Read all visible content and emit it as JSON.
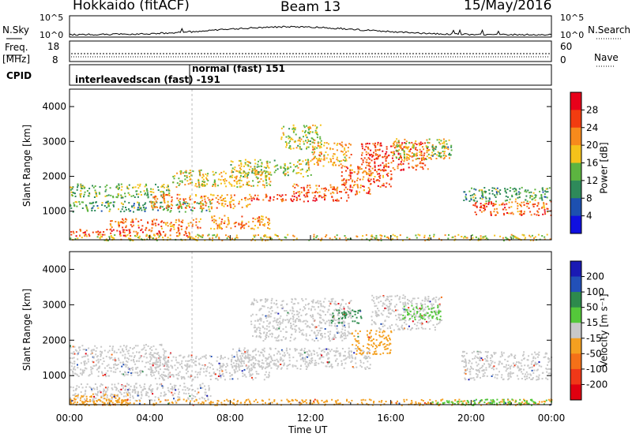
{
  "header": {
    "station": "Hokkaido (fitACF)",
    "beam": "Beam 13",
    "date": "15/May/2016"
  },
  "top_panels": {
    "nsky_label": "N.Sky",
    "nsearch_label": "N.Search",
    "freq_label_1": "Freq.",
    "freq_label_2": "[MHz]",
    "nave_label": "Nave",
    "cpid_label": "CPID",
    "nsky_ticks": [
      "10^5",
      "10^0"
    ],
    "nsearch_ticks": [
      "10^5",
      "10^0"
    ],
    "freq_ticks": [
      "18",
      "8"
    ],
    "nave_ticks": [
      "60",
      "0"
    ],
    "cpid_entries": [
      {
        "text": "interleavedscan (fast) -191"
      },
      {
        "text": "normal (fast) 151"
      }
    ]
  },
  "x_axis": {
    "label": "Time UT",
    "ticks": [
      "00:00",
      "04:00",
      "08:00",
      "12:00",
      "16:00",
      "20:00",
      "00:00"
    ]
  },
  "power_colorbar": {
    "label": "Power [dB]",
    "ticks": [
      "28",
      "24",
      "20",
      "16",
      "12",
      "8",
      "4"
    ],
    "colors": [
      "#e8001a",
      "#f23c10",
      "#f78a1c",
      "#f5c21a",
      "#5cb440",
      "#2e8a5a",
      "#1d50b0",
      "#1010e0"
    ]
  },
  "velocity_colorbar": {
    "label": "Velocity [m s⁻¹]",
    "ticks": [
      "200",
      "100",
      "50",
      "15",
      "-15",
      "-50",
      "-100",
      "-200"
    ],
    "colors": [
      "#1a1ab4",
      "#2250b8",
      "#2d8a4c",
      "#54c83a",
      "#c8c8c8",
      "#f4a020",
      "#f47018",
      "#f03818",
      "#e00010"
    ]
  },
  "chart_data": [
    {
      "type": "heatmap",
      "title": "",
      "xlabel": "Time UT",
      "ylabel": "Slant Range [km]",
      "xlim": [
        0,
        24
      ],
      "ylim": [
        180,
        4500
      ],
      "y_ticks": [
        1000,
        2000,
        3000,
        4000
      ],
      "colorbar_label": "Power [dB]",
      "regions": [
        {
          "t": [
            0.0,
            6.0
          ],
          "r": [
            300,
            500
          ],
          "v": 26
        },
        {
          "t": [
            2.0,
            6.5
          ],
          "r": [
            500,
            800
          ],
          "v": 24
        },
        {
          "t": [
            0.0,
            5.0
          ],
          "r": [
            1400,
            1800
          ],
          "v": 14
        },
        {
          "t": [
            0.0,
            7.0
          ],
          "r": [
            1000,
            1300
          ],
          "v": 12
        },
        {
          "t": [
            4.0,
            9.0
          ],
          "r": [
            1100,
            1500
          ],
          "v": 22
        },
        {
          "t": [
            7.0,
            10.0
          ],
          "r": [
            500,
            900
          ],
          "v": 22
        },
        {
          "t": [
            9.0,
            14.0
          ],
          "r": [
            1300,
            1500
          ],
          "v": 26
        },
        {
          "t": [
            11.0,
            15.0
          ],
          "r": [
            1500,
            1800
          ],
          "v": 24
        },
        {
          "t": [
            12.0,
            14.0
          ],
          "r": [
            2300,
            3000
          ],
          "v": 20
        },
        {
          "t": [
            13.5,
            16.0
          ],
          "r": [
            1700,
            2300
          ],
          "v": 24
        },
        {
          "t": [
            14.5,
            18.0
          ],
          "r": [
            2200,
            3000
          ],
          "v": 26
        },
        {
          "t": [
            16.0,
            19.0
          ],
          "r": [
            2500,
            3100
          ],
          "v": 18
        },
        {
          "t": [
            18.0,
            19.0
          ],
          "r": [
            2600,
            2900
          ],
          "v": 12
        },
        {
          "t": [
            19.5,
            24.0
          ],
          "r": [
            1300,
            1700
          ],
          "v": 12
        },
        {
          "t": [
            20.0,
            24.0
          ],
          "r": [
            900,
            1300
          ],
          "v": 24
        },
        {
          "t": [
            0.0,
            24.0
          ],
          "r": [
            180,
            350
          ],
          "v": 18
        },
        {
          "t": [
            5.0,
            10.0
          ],
          "r": [
            1700,
            2200
          ],
          "v": 18
        },
        {
          "t": [
            8.0,
            12.0
          ],
          "r": [
            2000,
            2500
          ],
          "v": 16
        },
        {
          "t": [
            10.5,
            12.5
          ],
          "r": [
            2800,
            3500
          ],
          "v": 16
        }
      ]
    },
    {
      "type": "heatmap",
      "title": "",
      "xlabel": "Time UT",
      "ylabel": "Slant Range [km]",
      "xlim": [
        0,
        24
      ],
      "ylim": [
        180,
        4500
      ],
      "y_ticks": [
        1000,
        2000,
        3000,
        4000
      ],
      "colorbar_label": "Velocity [m s⁻¹]",
      "regions": [
        {
          "t": [
            0.0,
            7.0
          ],
          "r": [
            300,
            800
          ],
          "v": 0
        },
        {
          "t": [
            0.0,
            5.0
          ],
          "r": [
            1000,
            1900
          ],
          "v": 0
        },
        {
          "t": [
            4.0,
            10.0
          ],
          "r": [
            900,
            1600
          ],
          "v": 0
        },
        {
          "t": [
            8.0,
            15.0
          ],
          "r": [
            1200,
            1800
          ],
          "v": 0
        },
        {
          "t": [
            9.0,
            14.0
          ],
          "r": [
            2000,
            3200
          ],
          "v": 0
        },
        {
          "t": [
            14.0,
            16.0
          ],
          "r": [
            1600,
            2300
          ],
          "v": -30
        },
        {
          "t": [
            15.0,
            18.5
          ],
          "r": [
            2300,
            3300
          ],
          "v": 0
        },
        {
          "t": [
            16.5,
            18.5
          ],
          "r": [
            2600,
            3000
          ],
          "v": 40
        },
        {
          "t": [
            13.0,
            14.5
          ],
          "r": [
            2500,
            2900
          ],
          "v": 60
        },
        {
          "t": [
            19.5,
            24.0
          ],
          "r": [
            900,
            1700
          ],
          "v": 0
        },
        {
          "t": [
            0.0,
            24.0
          ],
          "r": [
            180,
            350
          ],
          "v": -20
        },
        {
          "t": [
            18.0,
            24.0
          ],
          "r": [
            180,
            350
          ],
          "v": 40
        },
        {
          "t": [
            0.0,
            3.0
          ],
          "r": [
            180,
            500
          ],
          "v": -40
        }
      ]
    }
  ]
}
